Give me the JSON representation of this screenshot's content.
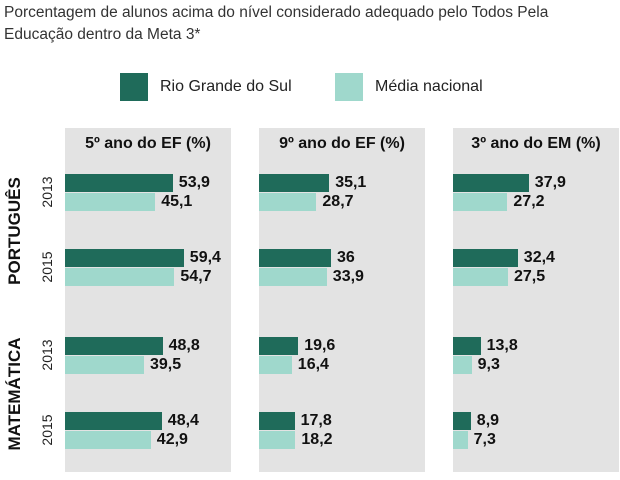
{
  "title": "Porcentagem de alunos acima do nível considerado adequado pelo Todos Pela Educação dentro da Meta 3*",
  "colors": {
    "rs": "#1f6b5a",
    "nacional": "#9fd8cc",
    "panel_bg": "#e3e3e3"
  },
  "legend": [
    {
      "label": "Rio Grande do Sul",
      "color": "#1f6b5a"
    },
    {
      "label": "Média nacional",
      "color": "#9fd8cc"
    }
  ],
  "chart_data": {
    "type": "bar",
    "orientation": "horizontal",
    "panels": [
      "5º ano do EF (%)",
      "9º ano do EF (%)",
      "3º ano do EM (%)"
    ],
    "groups": [
      {
        "subject": "PORTUGUÊS",
        "rows": [
          {
            "year": "2013",
            "rs": [
              53.9,
              35.1,
              37.9
            ],
            "nacional": [
              45.1,
              28.7,
              27.2
            ]
          },
          {
            "year": "2015",
            "rs": [
              59.4,
              36,
              32.4
            ],
            "nacional": [
              54.7,
              33.9,
              27.5
            ]
          }
        ]
      },
      {
        "subject": "MATEMÁTICA",
        "rows": [
          {
            "year": "2013",
            "rs": [
              48.8,
              19.6,
              13.8
            ],
            "nacional": [
              39.5,
              16.4,
              9.3
            ]
          },
          {
            "year": "2015",
            "rs": [
              48.4,
              17.8,
              8.9
            ],
            "nacional": [
              42.9,
              18.2,
              7.3
            ]
          }
        ]
      }
    ],
    "series": [
      {
        "name": "Rio Grande do Sul",
        "key": "rs"
      },
      {
        "name": "Média nacional",
        "key": "nacional"
      }
    ]
  },
  "labels": {
    "values": [
      [
        "53,9",
        "45,1",
        "35,1",
        "28,7",
        "37,9",
        "27,2"
      ],
      [
        "59,4",
        "54,7",
        "36",
        "33,9",
        "32,4",
        "27,5"
      ],
      [
        "48,8",
        "39,5",
        "19,6",
        "16,4",
        "13,8",
        "9,3"
      ],
      [
        "48,4",
        "42,9",
        "17,8",
        "18,2",
        "8,9",
        "7,3"
      ]
    ]
  }
}
